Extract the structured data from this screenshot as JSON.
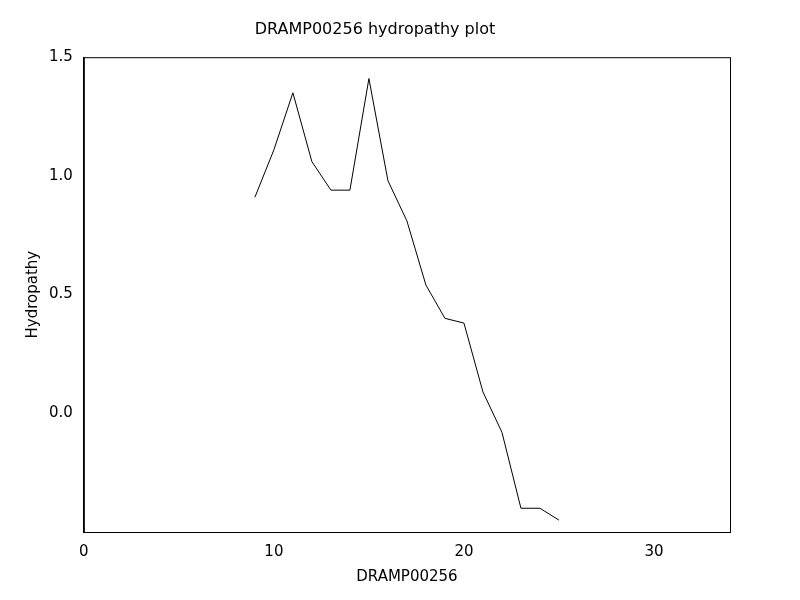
{
  "chart_data": {
    "type": "line",
    "title": "DRAMP00256 hydropathy plot",
    "x_label": "DRAMP00256",
    "y_label": "Hydropathy",
    "x": [
      9,
      10,
      11,
      12,
      13,
      14,
      15,
      16,
      17,
      18,
      19,
      20,
      21,
      22,
      23,
      24,
      25
    ],
    "values": [
      0.91,
      1.11,
      1.35,
      1.06,
      0.94,
      0.94,
      1.41,
      0.98,
      0.81,
      0.54,
      0.4,
      0.38,
      0.09,
      -0.08,
      -0.4,
      -0.4,
      -0.45
    ],
    "color": "#000000",
    "xlim": [
      0,
      34
    ],
    "xticks": [
      0,
      10,
      20,
      30
    ],
    "ylim": [
      -0.5,
      1.5
    ],
    "yticks": [
      {
        "value": 0,
        "label": "0.0"
      },
      {
        "value": 0.5,
        "label": "0.5"
      },
      {
        "value": 1,
        "label": "1.0"
      },
      {
        "value": 1.5,
        "label": "1.5"
      }
    ],
    "grid": false
  }
}
